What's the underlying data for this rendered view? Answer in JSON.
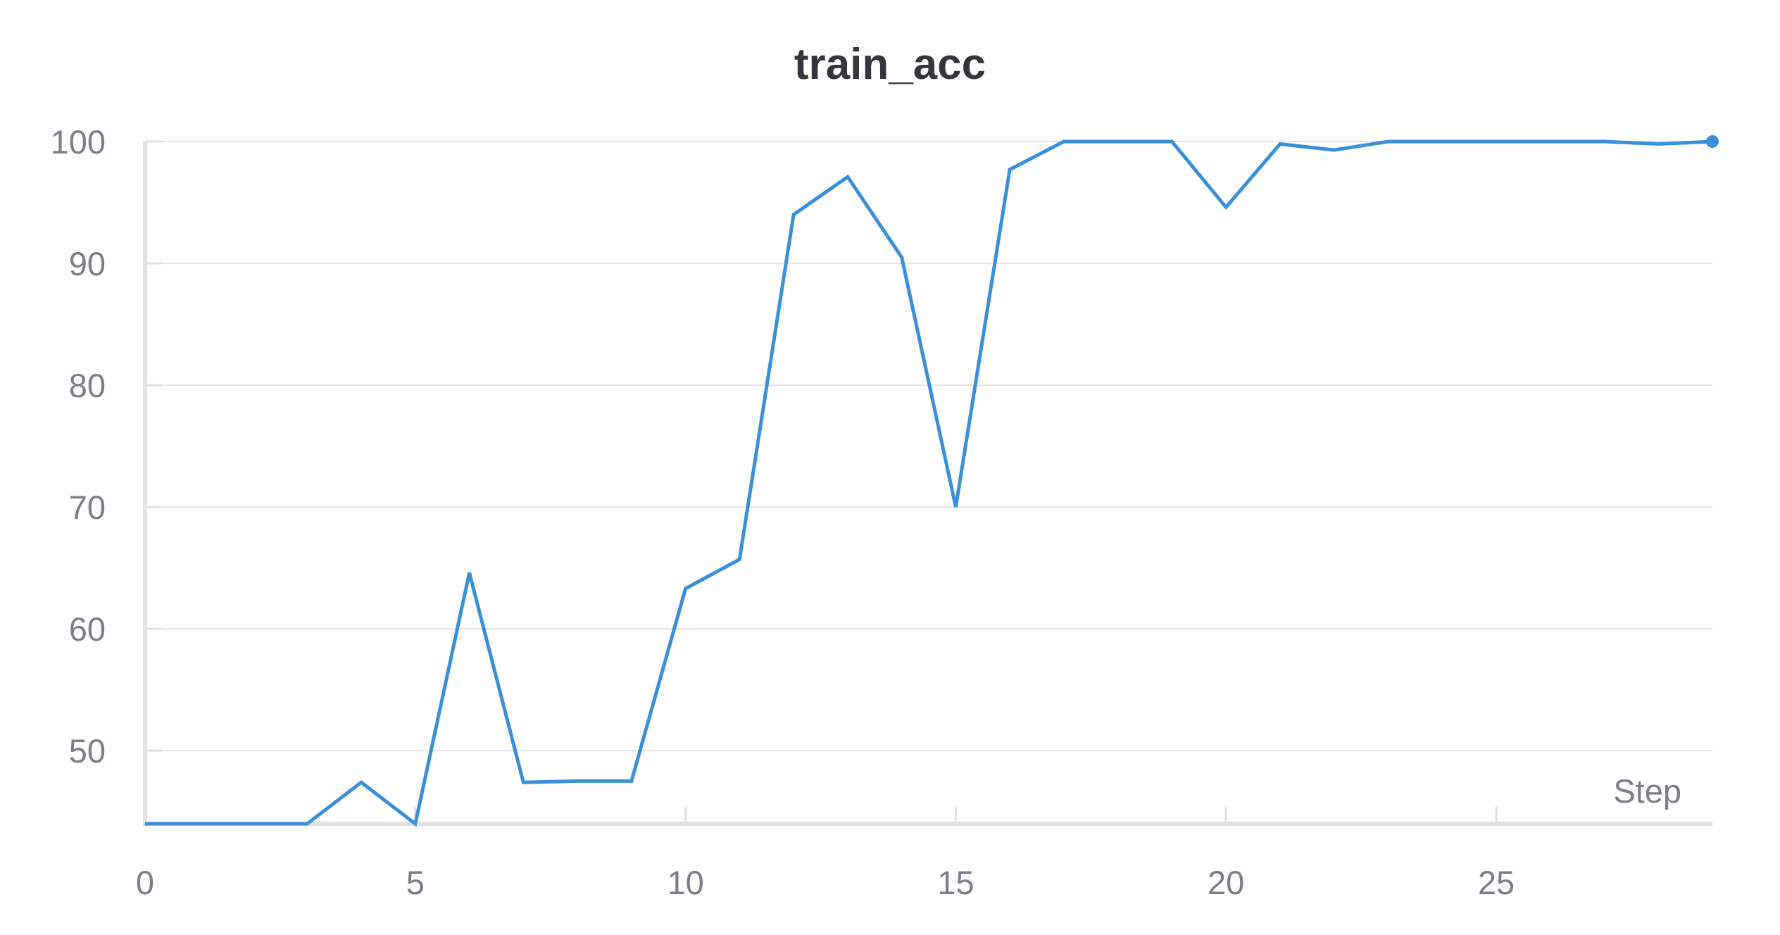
{
  "chart_data": {
    "type": "line",
    "title": "train_acc",
    "xlabel": "Step",
    "ylabel": "",
    "xlim": [
      0,
      29
    ],
    "ylim": [
      44,
      100
    ],
    "x_ticks": [
      0,
      5,
      10,
      15,
      20,
      25
    ],
    "y_ticks": [
      50,
      60,
      70,
      80,
      90,
      100
    ],
    "grid": true,
    "legend": "none",
    "series": [
      {
        "color": "#3a8fd6",
        "x": [
          0,
          1,
          2,
          3,
          4,
          5,
          6,
          7,
          8,
          9,
          10,
          11,
          12,
          13,
          14,
          15,
          16,
          17,
          18,
          19,
          20,
          21,
          22,
          23,
          24,
          25,
          26,
          27,
          28,
          29
        ],
        "values": [
          44,
          44,
          44,
          44,
          47.4,
          44,
          64.6,
          47.4,
          47.5,
          47.5,
          63.3,
          65.7,
          94,
          97.1,
          90.5,
          70,
          97.7,
          100,
          100,
          100,
          94.6,
          99.8,
          99.3,
          100,
          100,
          100,
          100,
          100,
          99.8,
          100
        ]
      }
    ]
  }
}
